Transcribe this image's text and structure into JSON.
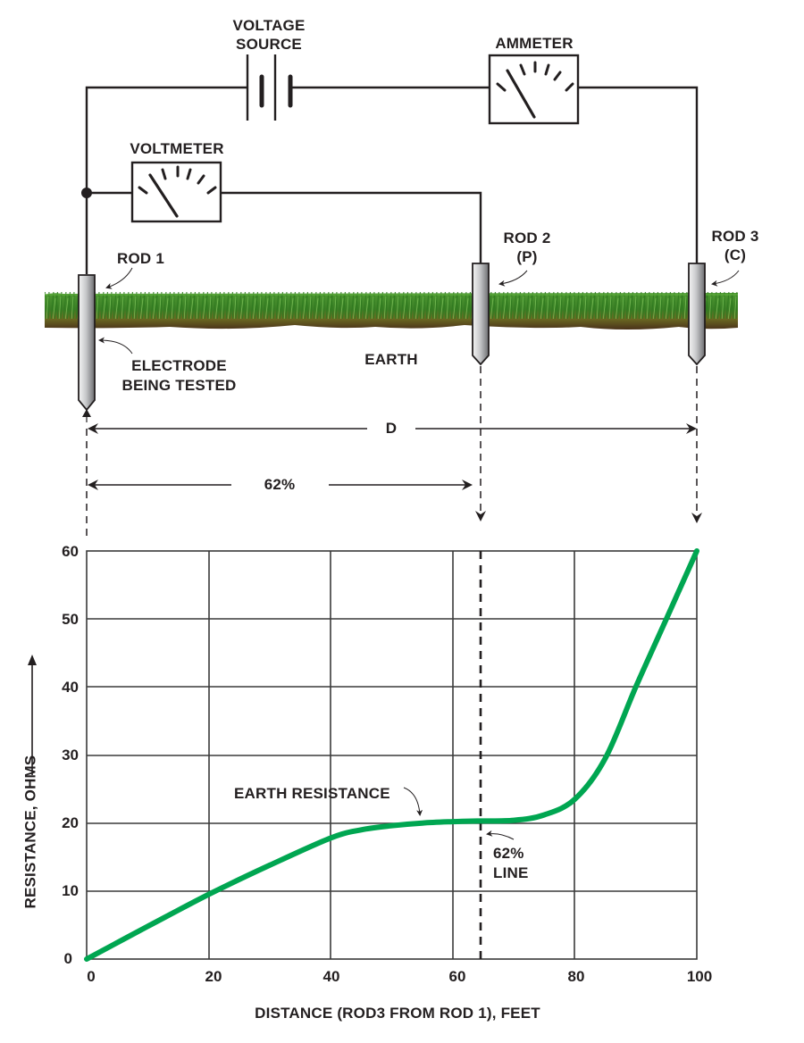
{
  "diagram": {
    "labels": {
      "voltage_source": [
        "VOLTAGE",
        "SOURCE"
      ],
      "ammeter": "AMMETER",
      "voltmeter": "VOLTMETER",
      "rod1": "ROD 1",
      "rod2": [
        "ROD 2",
        "(P)"
      ],
      "rod3": [
        "ROD 3",
        "(C)"
      ],
      "electrode": [
        "ELECTRODE",
        "BEING TESTED"
      ],
      "earth": "EARTH",
      "distance_d": "D",
      "distance_62": "62%"
    },
    "colors": {
      "line": "#231f20",
      "grass_top": "#3f8f2a",
      "grass_dark": "#2b6a1d",
      "soil": "#5a3d1e",
      "curve": "#00a651"
    }
  },
  "chart_data": {
    "type": "line",
    "title": "",
    "xlabel": "DISTANCE (ROD3 FROM ROD 1), FEET",
    "ylabel": "RESISTANCE, OHMS",
    "xlim": [
      0,
      100
    ],
    "ylim": [
      0,
      60
    ],
    "x_ticks": [
      "0",
      "20",
      "40",
      "60",
      "80",
      "100"
    ],
    "y_ticks": [
      "0",
      "10",
      "20",
      "30",
      "40",
      "50",
      "60"
    ],
    "grid": true,
    "legend": null,
    "series": [
      {
        "name": "Earth resistance curve",
        "color": "#00a651",
        "x": [
          0,
          10,
          20,
          30,
          40,
          45,
          50,
          55,
          60,
          64,
          70,
          75,
          80,
          85,
          90,
          95,
          100
        ],
        "y": [
          0,
          4.8,
          9.5,
          13.8,
          17.8,
          19.0,
          19.6,
          20.0,
          20.2,
          20.3,
          20.4,
          21.2,
          23.5,
          29.5,
          40.0,
          50.0,
          60.0
        ]
      }
    ],
    "annotations": [
      {
        "text": "EARTH RESISTANCE",
        "x": 54,
        "y": 20,
        "type": "arrow-label"
      },
      {
        "text": "62% LINE",
        "x": 64.5,
        "y": 20,
        "type": "dashed-vertical-line",
        "label_lines": [
          "62%",
          "LINE"
        ]
      }
    ]
  }
}
